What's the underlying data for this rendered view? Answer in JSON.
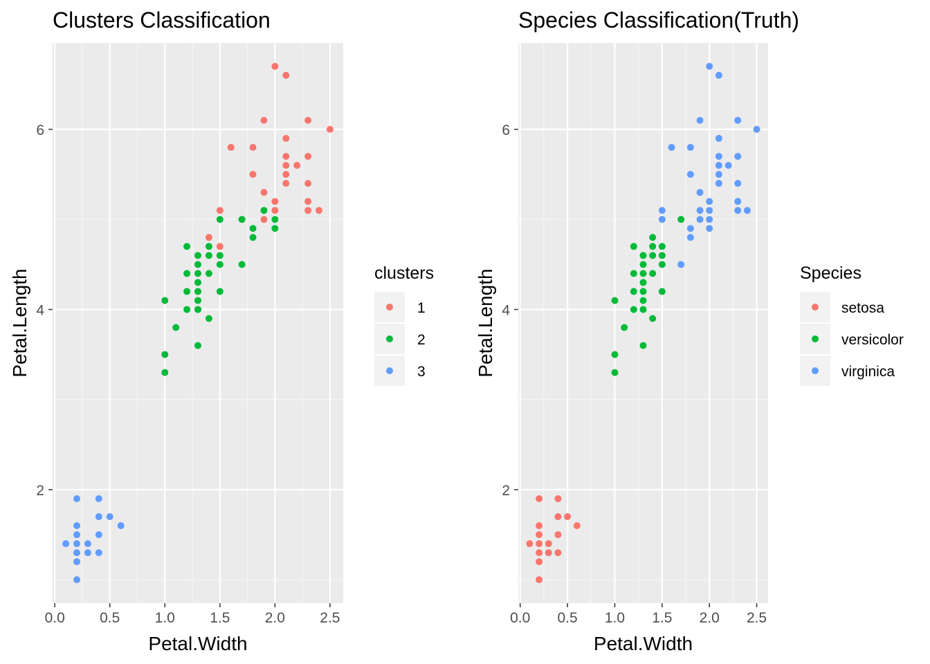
{
  "colors": {
    "panel": "#ebebeb",
    "grid_major": "#ffffff",
    "grid_minor": "#f5f5f5",
    "tick": "#333333",
    "legend_key_bg": "#f2f2f2",
    "group1": "#f8766d",
    "group2": "#00ba38",
    "group3": "#619cff"
  },
  "chart_data": [
    {
      "type": "scatter",
      "title": "Clusters Classification",
      "xlabel": "Petal.Width",
      "ylabel": "Petal.Length",
      "xlim": [
        -0.02,
        2.62
      ],
      "ylim": [
        0.74,
        6.96
      ],
      "x_ticks": [
        0.0,
        0.5,
        1.0,
        1.5,
        2.0,
        2.5
      ],
      "x_tick_labels": [
        "0.0",
        "0.5",
        "1.0",
        "1.5",
        "2.0",
        "2.5"
      ],
      "y_ticks": [
        2,
        4,
        6
      ],
      "y_tick_labels": [
        "2",
        "4",
        "6"
      ],
      "grid": true,
      "legend": {
        "title": "clusters",
        "position": "right",
        "entries": [
          "1",
          "2",
          "3"
        ]
      },
      "series": [
        {
          "name": "1",
          "color_key": "group1",
          "points": [
            [
              2.0,
              6.7
            ],
            [
              2.1,
              6.6
            ],
            [
              1.9,
              6.1
            ],
            [
              2.3,
              6.1
            ],
            [
              2.5,
              6.0
            ],
            [
              1.6,
              5.8
            ],
            [
              1.8,
              5.8
            ],
            [
              2.1,
              5.9
            ],
            [
              2.1,
              5.7
            ],
            [
              2.3,
              5.7
            ],
            [
              2.1,
              5.6
            ],
            [
              2.2,
              5.6
            ],
            [
              2.1,
              5.5
            ],
            [
              1.8,
              5.5
            ],
            [
              2.1,
              5.4
            ],
            [
              2.3,
              5.4
            ],
            [
              1.9,
              5.3
            ],
            [
              2.0,
              5.2
            ],
            [
              2.3,
              5.2
            ],
            [
              1.5,
              5.1
            ],
            [
              2.0,
              5.1
            ],
            [
              2.3,
              5.1
            ],
            [
              2.4,
              5.1
            ],
            [
              1.7,
              5.0
            ],
            [
              1.9,
              5.0
            ],
            [
              1.4,
              4.8
            ],
            [
              1.5,
              4.7
            ]
          ]
        },
        {
          "name": "2",
          "color_key": "group2",
          "points": [
            [
              1.9,
              5.1
            ],
            [
              1.5,
              5.0
            ],
            [
              1.7,
              5.0
            ],
            [
              2.0,
              5.0
            ],
            [
              2.0,
              4.9
            ],
            [
              1.8,
              4.9
            ],
            [
              1.8,
              4.8
            ],
            [
              1.2,
              4.7
            ],
            [
              1.4,
              4.7
            ],
            [
              1.5,
              4.6
            ],
            [
              1.3,
              4.6
            ],
            [
              1.4,
              4.6
            ],
            [
              1.3,
              4.5
            ],
            [
              1.5,
              4.5
            ],
            [
              1.7,
              4.5
            ],
            [
              1.2,
              4.4
            ],
            [
              1.3,
              4.4
            ],
            [
              1.4,
              4.4
            ],
            [
              1.3,
              4.3
            ],
            [
              1.5,
              4.2
            ],
            [
              1.2,
              4.2
            ],
            [
              1.3,
              4.2
            ],
            [
              1.0,
              4.1
            ],
            [
              1.3,
              4.1
            ],
            [
              1.2,
              4.0
            ],
            [
              1.3,
              4.0
            ],
            [
              1.3,
              4.0
            ],
            [
              1.4,
              3.9
            ],
            [
              1.1,
              3.8
            ],
            [
              1.3,
              3.6
            ],
            [
              1.0,
              3.5
            ],
            [
              1.0,
              3.3
            ]
          ]
        },
        {
          "name": "3",
          "color_key": "group3",
          "points": [
            [
              0.2,
              1.9
            ],
            [
              0.4,
              1.9
            ],
            [
              0.4,
              1.7
            ],
            [
              0.5,
              1.7
            ],
            [
              0.2,
              1.6
            ],
            [
              0.6,
              1.6
            ],
            [
              0.2,
              1.5
            ],
            [
              0.4,
              1.5
            ],
            [
              0.1,
              1.4
            ],
            [
              0.2,
              1.4
            ],
            [
              0.3,
              1.4
            ],
            [
              0.2,
              1.3
            ],
            [
              0.3,
              1.3
            ],
            [
              0.4,
              1.3
            ],
            [
              0.2,
              1.2
            ],
            [
              0.2,
              1.0
            ]
          ]
        }
      ]
    },
    {
      "type": "scatter",
      "title": "Species Classification(Truth)",
      "xlabel": "Petal.Width",
      "ylabel": "Petal.Length",
      "xlim": [
        -0.02,
        2.62
      ],
      "ylim": [
        0.74,
        6.96
      ],
      "x_ticks": [
        0.0,
        0.5,
        1.0,
        1.5,
        2.0,
        2.5
      ],
      "x_tick_labels": [
        "0.0",
        "0.5",
        "1.0",
        "1.5",
        "2.0",
        "2.5"
      ],
      "y_ticks": [
        2,
        4,
        6
      ],
      "y_tick_labels": [
        "2",
        "4",
        "6"
      ],
      "grid": true,
      "legend": {
        "title": "Species",
        "position": "right",
        "entries": [
          "setosa",
          "versicolor",
          "virginica"
        ]
      },
      "series": [
        {
          "name": "setosa",
          "color_key": "group1",
          "points": [
            [
              0.2,
              1.9
            ],
            [
              0.4,
              1.9
            ],
            [
              0.4,
              1.7
            ],
            [
              0.5,
              1.7
            ],
            [
              0.2,
              1.6
            ],
            [
              0.6,
              1.6
            ],
            [
              0.2,
              1.5
            ],
            [
              0.4,
              1.5
            ],
            [
              0.1,
              1.4
            ],
            [
              0.2,
              1.4
            ],
            [
              0.3,
              1.4
            ],
            [
              0.2,
              1.3
            ],
            [
              0.3,
              1.3
            ],
            [
              0.4,
              1.3
            ],
            [
              0.2,
              1.2
            ],
            [
              0.2,
              1.0
            ]
          ]
        },
        {
          "name": "versicolor",
          "color_key": "group2",
          "points": [
            [
              1.7,
              5.0
            ],
            [
              1.4,
              4.8
            ],
            [
              1.2,
              4.7
            ],
            [
              1.4,
              4.7
            ],
            [
              1.5,
              4.7
            ],
            [
              1.3,
              4.6
            ],
            [
              1.4,
              4.6
            ],
            [
              1.5,
              4.6
            ],
            [
              1.3,
              4.5
            ],
            [
              1.5,
              4.5
            ],
            [
              1.2,
              4.4
            ],
            [
              1.3,
              4.4
            ],
            [
              1.4,
              4.4
            ],
            [
              1.3,
              4.3
            ],
            [
              1.2,
              4.2
            ],
            [
              1.3,
              4.2
            ],
            [
              1.5,
              4.2
            ],
            [
              1.0,
              4.1
            ],
            [
              1.3,
              4.1
            ],
            [
              1.2,
              4.0
            ],
            [
              1.3,
              4.0
            ],
            [
              1.4,
              3.9
            ],
            [
              1.1,
              3.8
            ],
            [
              1.3,
              3.6
            ],
            [
              1.0,
              3.5
            ],
            [
              1.0,
              3.3
            ]
          ]
        },
        {
          "name": "virginica",
          "color_key": "group3",
          "points": [
            [
              2.0,
              6.7
            ],
            [
              2.1,
              6.6
            ],
            [
              1.9,
              6.1
            ],
            [
              2.3,
              6.1
            ],
            [
              2.5,
              6.0
            ],
            [
              1.6,
              5.8
            ],
            [
              1.8,
              5.8
            ],
            [
              2.1,
              5.9
            ],
            [
              2.1,
              5.7
            ],
            [
              2.3,
              5.7
            ],
            [
              2.1,
              5.6
            ],
            [
              2.2,
              5.6
            ],
            [
              2.1,
              5.5
            ],
            [
              1.8,
              5.5
            ],
            [
              2.1,
              5.4
            ],
            [
              2.3,
              5.4
            ],
            [
              1.9,
              5.3
            ],
            [
              2.0,
              5.2
            ],
            [
              2.3,
              5.2
            ],
            [
              1.5,
              5.1
            ],
            [
              1.9,
              5.1
            ],
            [
              2.0,
              5.1
            ],
            [
              2.3,
              5.1
            ],
            [
              2.4,
              5.1
            ],
            [
              1.5,
              5.0
            ],
            [
              1.9,
              5.0
            ],
            [
              2.0,
              5.0
            ],
            [
              1.8,
              4.9
            ],
            [
              2.0,
              4.9
            ],
            [
              1.8,
              4.8
            ],
            [
              1.7,
              4.5
            ]
          ]
        }
      ]
    }
  ]
}
